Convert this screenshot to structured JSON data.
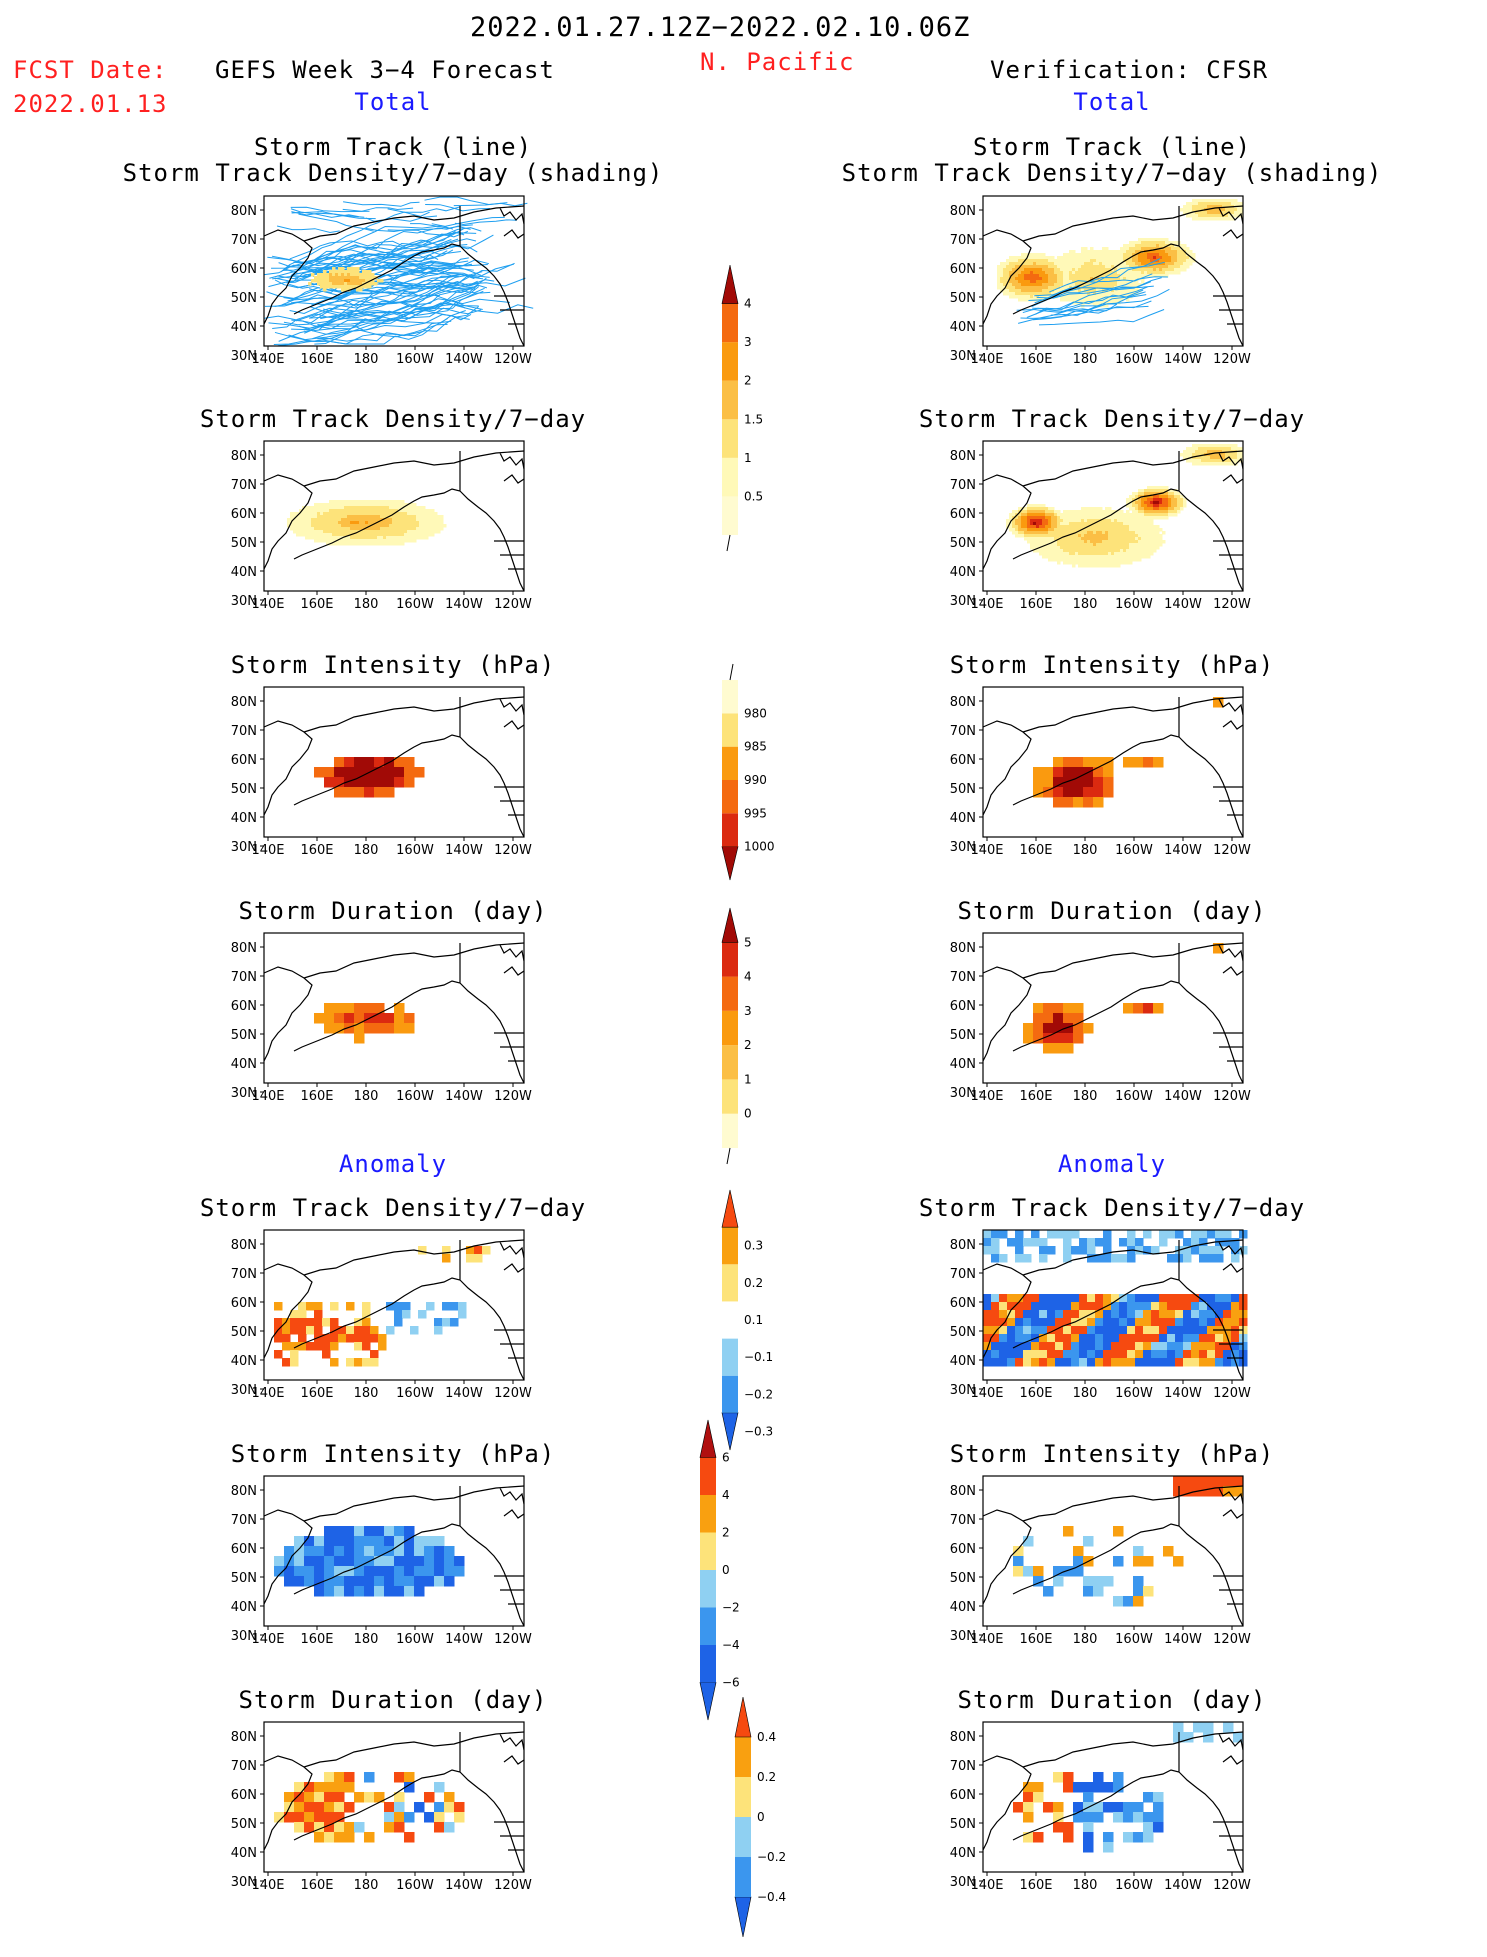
{
  "header": {
    "period": "2022.01.27.12Z−2022.02.10.06Z",
    "fcst_label": "FCST Date:",
    "fcst_date": "2022.01.13",
    "forecast_title": "GEFS Week 3−4 Forecast",
    "region": "N. Pacific",
    "verification_title": "Verification: CFSR",
    "left_section": "Total",
    "right_section": "Total",
    "left_anomaly": "Anomaly",
    "right_anomaly": "Anomaly"
  },
  "panel_titles": {
    "track_line": "Storm Track (line)",
    "track_shading": "Storm Track Density/7−day (shading)",
    "density": "Storm Track Density/7−day",
    "intensity": "Storm Intensity (hPa)",
    "duration": "Storm Duration (day)"
  },
  "axes": {
    "lat_labels": [
      "80N",
      "70N",
      "60N",
      "50N",
      "40N",
      "30N"
    ],
    "lon_labels": [
      "140E",
      "160E",
      "180",
      "160W",
      "140W",
      "120W"
    ]
  },
  "colors": {
    "total_scale": [
      "#fff9b8",
      "#fde37a",
      "#fbbf45",
      "#fa9a0f",
      "#f46a10",
      "#db2a10",
      "#a10a06"
    ],
    "anom_scale": [
      "#1e63e6",
      "#3b96ee",
      "#8fd0f2",
      "#ffffff",
      "#fde37a",
      "#f9a010",
      "#f64a10",
      "#b01010"
    ],
    "track_line": "#1e9ff0",
    "title_red": "#ff2020",
    "section_blue": "#1a1aff"
  },
  "chart_data": [
    {
      "type": "heatmap",
      "name": "density_total_colorbar",
      "levels": [
        0.5,
        1,
        1.5,
        2,
        3,
        4
      ],
      "tick_labels": [
        "0.5",
        "1",
        "1.5",
        "2",
        "3",
        "4"
      ]
    },
    {
      "type": "heatmap",
      "name": "intensity_total_colorbar",
      "levels": [
        1000,
        995,
        990,
        985,
        980
      ],
      "tick_labels": [
        "1000",
        "995",
        "990",
        "985",
        "980"
      ]
    },
    {
      "type": "heatmap",
      "name": "duration_total_colorbar",
      "levels": [
        0,
        1,
        2,
        3,
        4,
        5
      ],
      "tick_labels": [
        "0",
        "1",
        "2",
        "3",
        "4",
        "5"
      ]
    },
    {
      "type": "heatmap",
      "name": "density_anomaly_colorbar",
      "levels": [
        -0.3,
        -0.2,
        -0.1,
        0.1,
        0.2,
        0.3
      ],
      "tick_labels": [
        "−0.3",
        "−0.2",
        "−0.1",
        "0.1",
        "0.2",
        "0.3"
      ]
    },
    {
      "type": "heatmap",
      "name": "intensity_anomaly_colorbar",
      "levels": [
        -6,
        -4,
        -2,
        0,
        2,
        4,
        6
      ],
      "tick_labels": [
        "−6",
        "−4",
        "−2",
        "0",
        "2",
        "4",
        "6"
      ]
    },
    {
      "type": "heatmap",
      "name": "duration_anomaly_colorbar",
      "levels": [
        -0.4,
        -0.2,
        0,
        0.2,
        0.4
      ],
      "tick_labels": [
        "−0.4",
        "−0.2",
        "0",
        "0.2",
        "0.4"
      ]
    }
  ]
}
